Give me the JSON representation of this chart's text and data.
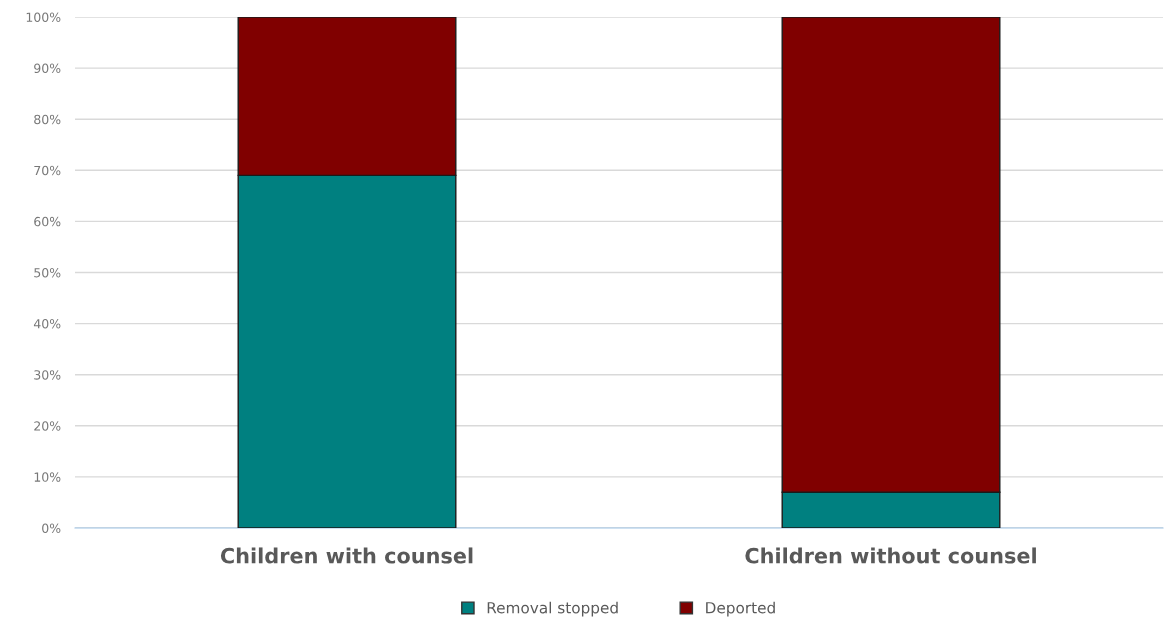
{
  "chart_data": {
    "type": "bar",
    "stacked": true,
    "categories": [
      "Children with counsel",
      "Children without counsel"
    ],
    "series": [
      {
        "name": "Removal stopped",
        "color": "#008080",
        "values": [
          69,
          7
        ]
      },
      {
        "name": "Deported",
        "color": "#800000",
        "values": [
          31,
          93
        ]
      }
    ],
    "ylim": [
      0,
      100
    ],
    "yticks": [
      {
        "value": 0,
        "label": "0%"
      },
      {
        "value": 10,
        "label": "10%"
      },
      {
        "value": 20,
        "label": "20%"
      },
      {
        "value": 30,
        "label": "30%"
      },
      {
        "value": 40,
        "label": "40%"
      },
      {
        "value": 50,
        "label": "50%"
      },
      {
        "value": 60,
        "label": "60%"
      },
      {
        "value": 70,
        "label": "70%"
      },
      {
        "value": 80,
        "label": "80%"
      },
      {
        "value": 90,
        "label": "90%"
      },
      {
        "value": 100,
        "label": "100%"
      }
    ],
    "grid": "y",
    "legend": "bottom"
  }
}
